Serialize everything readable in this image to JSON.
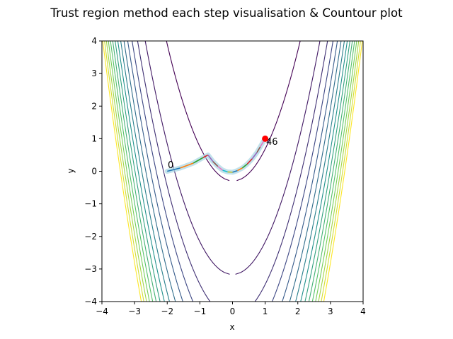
{
  "chart_data": {
    "type": "contour",
    "title": "Trust region method each step visualisation & Countour plot",
    "xlabel": "x",
    "ylabel": "y",
    "xlim": [
      -4,
      4
    ],
    "ylim": [
      -4,
      4
    ],
    "xticks": [
      -4,
      -3,
      -2,
      -1,
      0,
      1,
      2,
      3,
      4
    ],
    "yticks": [
      -4,
      -3,
      -2,
      -1,
      0,
      1,
      2,
      3,
      4
    ],
    "xtick_labels": [
      "−4",
      "−3",
      "−2",
      "−1",
      "0",
      "1",
      "2",
      "3",
      "4"
    ],
    "ytick_labels": [
      "−4",
      "−3",
      "−2",
      "−1",
      "0",
      "1",
      "2",
      "3",
      "4"
    ],
    "grid": false,
    "colormap": "viridis",
    "contour_levels": [
      10,
      1006,
      2002,
      2998,
      3994,
      4990,
      5986,
      6982,
      7978,
      8974,
      9970,
      10966,
      11962,
      12958,
      13954
    ],
    "path": {
      "x": [
        -2.0,
        -1.6,
        -1.2,
        -0.9,
        -0.75,
        -0.6,
        -0.45,
        -0.3,
        -0.15,
        0.0,
        0.15,
        0.3,
        0.45,
        0.6,
        0.75,
        0.85,
        0.95,
        1.0
      ],
      "y": [
        0.0,
        0.1,
        0.25,
        0.42,
        0.5,
        0.3,
        0.15,
        0.03,
        -0.02,
        -0.03,
        0.02,
        0.1,
        0.22,
        0.38,
        0.58,
        0.75,
        0.92,
        1.0
      ]
    },
    "start_label": "0",
    "end_label": "46",
    "end_point": {
      "x": 1.0,
      "y": 1.0
    },
    "colors": {
      "end_point": "#ff0000",
      "path_halo": "#add8e6",
      "path": "#1f77b4"
    }
  }
}
